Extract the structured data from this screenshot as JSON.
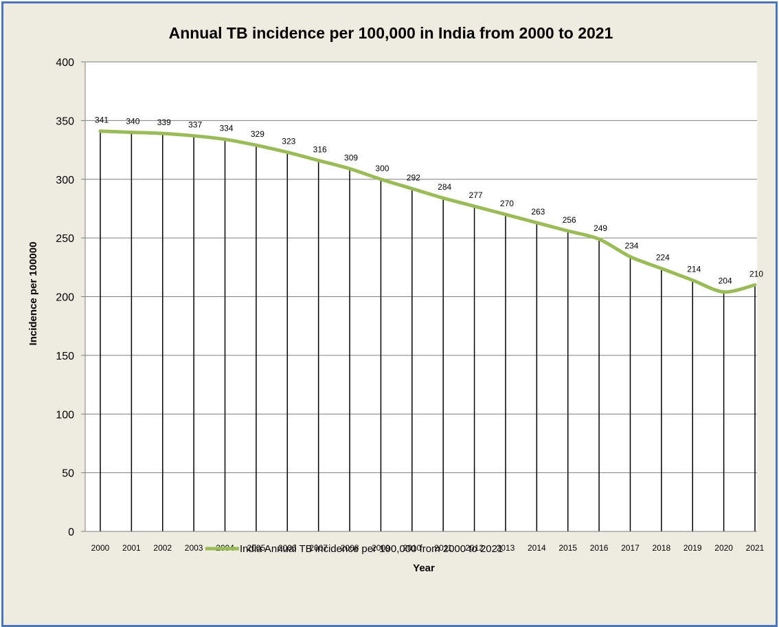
{
  "chart_data": {
    "type": "line",
    "title": "Annual TB incidence per 100,000 in India from 2000 to 2021",
    "xlabel": "Year",
    "ylabel": "Incidence per 100000",
    "ylim": [
      0,
      400
    ],
    "ytick_step": 50,
    "grid": true,
    "legend_position": "bottom",
    "categories": [
      "2000",
      "2001",
      "2002",
      "2003",
      "2004",
      "2005",
      "2006",
      "2007",
      "2008",
      "2009",
      "2010",
      "2011",
      "2012",
      "2013",
      "2014",
      "2015",
      "2016",
      "2017",
      "2018",
      "2019",
      "2020",
      "2021"
    ],
    "series": [
      {
        "name": "India Annual TB incidence per 100,000 from 2000 to 2021",
        "values": [
          341,
          340,
          339,
          337,
          334,
          329,
          323,
          316,
          309,
          300,
          292,
          284,
          277,
          270,
          263,
          256,
          249,
          234,
          224,
          214,
          204,
          210
        ],
        "color": "#9bbb59",
        "drop_lines": true
      }
    ]
  },
  "colors": {
    "background": "#eeece1",
    "plot_area": "#ffffff",
    "frame_border": "#4a76b8",
    "gridline": "#7f7f7f",
    "drop_line": "#000000"
  }
}
